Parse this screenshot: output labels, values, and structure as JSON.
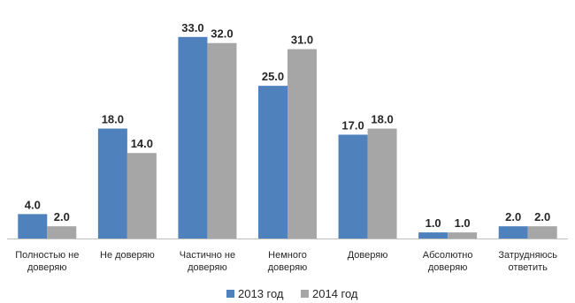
{
  "chart_data": {
    "type": "bar",
    "categories": [
      [
        "Полностью не",
        "доверяю"
      ],
      [
        "Не доверяю"
      ],
      [
        "Частично не",
        "доверяю"
      ],
      [
        "Немного",
        "доверяю"
      ],
      [
        "Доверяю"
      ],
      [
        "Абсолютно",
        "доверяю"
      ],
      [
        "Затрудняюсь",
        "ответить"
      ]
    ],
    "series": [
      {
        "name": "2013 год",
        "color": "#4f81bd",
        "values": [
          4.0,
          18.0,
          33.0,
          25.0,
          17.0,
          1.0,
          2.0
        ]
      },
      {
        "name": "2014 год",
        "color": "#a6a6a6",
        "values": [
          2.0,
          14.0,
          32.0,
          31.0,
          18.0,
          1.0,
          2.0
        ]
      }
    ],
    "ylim": [
      0,
      35
    ],
    "value_format_decimals": 1,
    "grid": false,
    "legend_position": "bottom"
  }
}
